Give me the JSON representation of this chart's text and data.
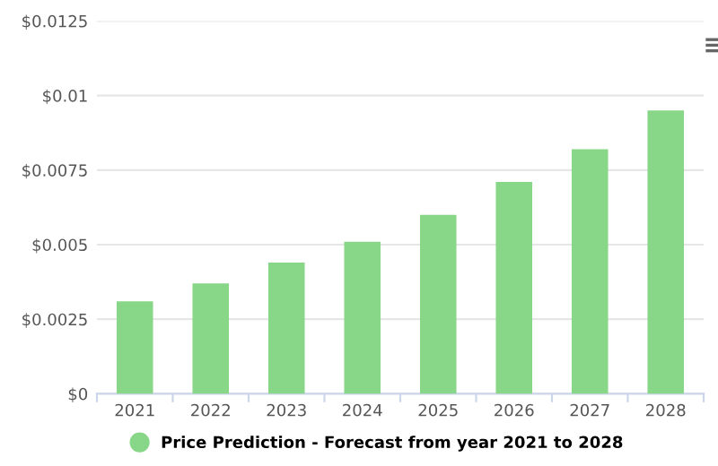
{
  "chart_data": {
    "type": "bar",
    "categories": [
      "2021",
      "2022",
      "2023",
      "2024",
      "2025",
      "2026",
      "2027",
      "2028"
    ],
    "series": [
      {
        "name": "Price Prediction - Forecast from year 2021 to 2028",
        "color": "#88d688",
        "values": [
          0.0031,
          0.0037,
          0.0044,
          0.0051,
          0.006,
          0.0071,
          0.0082,
          0.0095
        ]
      }
    ],
    "ylim": [
      0,
      0.0125
    ],
    "yticks": [
      {
        "value": 0,
        "label": "$0"
      },
      {
        "value": 0.0025,
        "label": "$0.0025"
      },
      {
        "value": 0.005,
        "label": "$0.005"
      },
      {
        "value": 0.0075,
        "label": "$0.0075"
      },
      {
        "value": 0.01,
        "label": "$0.01"
      },
      {
        "value": 0.0125,
        "label": "$0.0125"
      }
    ],
    "grid": "y",
    "legend": "bottom"
  }
}
